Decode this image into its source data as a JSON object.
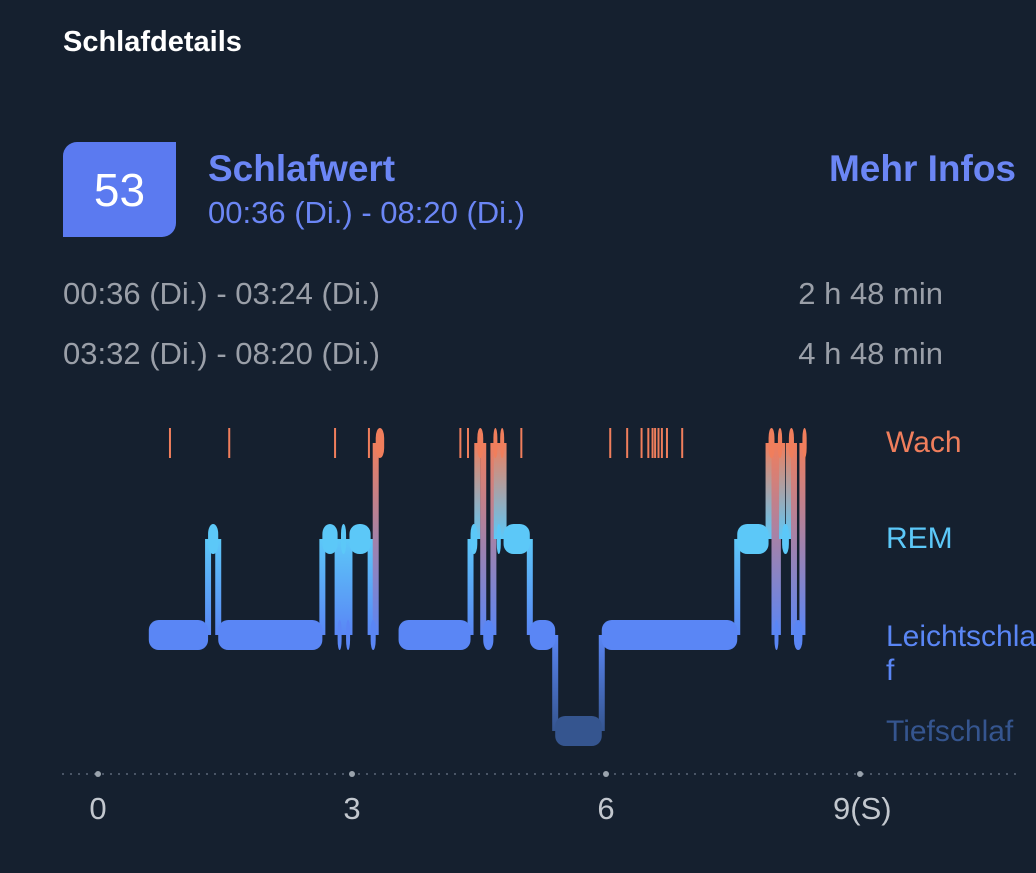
{
  "header": {
    "title": "Schlafdetails"
  },
  "score": {
    "value": "53",
    "title": "Schlafwert",
    "range": "00:36 (Di.) - 08:20 (Di.)",
    "more_info": "Mehr Infos"
  },
  "segments": [
    {
      "time": "00:36 (Di.) - 03:24 (Di.)",
      "duration": "2 h 48 min"
    },
    {
      "time": "03:32 (Di.) - 08:20 (Di.)",
      "duration": "4 h 48 min"
    }
  ],
  "chart_data": {
    "type": "hypnogram",
    "x_unit_label": "(S)",
    "x_ticks": [
      0,
      3,
      6,
      9
    ],
    "x_tick_labels": [
      "0",
      "3",
      "6",
      "9(S)"
    ],
    "xlim": [
      0,
      9.5
    ],
    "stages": [
      {
        "key": "wach",
        "label": "Wach",
        "color": "#f07e5c"
      },
      {
        "key": "rem",
        "label": "REM",
        "color": "#5cc8f8"
      },
      {
        "key": "leicht",
        "label": "Leichtschlaf",
        "color": "#5a86f5"
      },
      {
        "key": "tief",
        "label": "Tiefschlaf",
        "color": "#35558f"
      }
    ],
    "sessions": [
      {
        "segments": [
          {
            "stage": "leicht",
            "start": 0.6,
            "end": 1.3
          },
          {
            "stage": "rem",
            "start": 1.3,
            "end": 1.42
          },
          {
            "stage": "leicht",
            "start": 1.42,
            "end": 2.65
          },
          {
            "stage": "rem",
            "start": 2.65,
            "end": 2.83
          },
          {
            "stage": "leicht",
            "start": 2.83,
            "end": 2.87
          },
          {
            "stage": "rem",
            "start": 2.87,
            "end": 2.93
          },
          {
            "stage": "leicht",
            "start": 2.93,
            "end": 2.97
          },
          {
            "stage": "rem",
            "start": 2.97,
            "end": 3.22
          },
          {
            "stage": "leicht",
            "start": 3.22,
            "end": 3.28
          },
          {
            "stage": "wach",
            "start": 3.28,
            "end": 3.38
          }
        ]
      },
      {
        "segments": [
          {
            "stage": "leicht",
            "start": 3.55,
            "end": 4.4
          },
          {
            "stage": "rem",
            "start": 4.4,
            "end": 4.48
          },
          {
            "stage": "wach",
            "start": 4.48,
            "end": 4.55
          },
          {
            "stage": "leicht",
            "start": 4.55,
            "end": 4.67
          },
          {
            "stage": "wach",
            "start": 4.67,
            "end": 4.71
          },
          {
            "stage": "rem",
            "start": 4.71,
            "end": 4.75
          },
          {
            "stage": "wach",
            "start": 4.75,
            "end": 4.79
          },
          {
            "stage": "rem",
            "start": 4.79,
            "end": 5.1
          },
          {
            "stage": "leicht",
            "start": 5.1,
            "end": 5.4
          },
          {
            "stage": "tief",
            "start": 5.4,
            "end": 5.95
          },
          {
            "stage": "leicht",
            "start": 5.95,
            "end": 7.55
          },
          {
            "stage": "rem",
            "start": 7.55,
            "end": 7.92
          },
          {
            "stage": "wach",
            "start": 7.92,
            "end": 7.99
          },
          {
            "stage": "leicht",
            "start": 7.99,
            "end": 8.03
          },
          {
            "stage": "wach",
            "start": 8.03,
            "end": 8.08
          },
          {
            "stage": "rem",
            "start": 8.08,
            "end": 8.16
          },
          {
            "stage": "wach",
            "start": 8.16,
            "end": 8.22
          },
          {
            "stage": "leicht",
            "start": 8.22,
            "end": 8.32
          },
          {
            "stage": "wach",
            "start": 8.32,
            "end": 8.37
          }
        ]
      }
    ],
    "wake_marks": [
      0.85,
      1.55,
      2.8,
      3.2,
      4.28,
      4.37,
      5.0,
      6.05,
      6.25,
      6.42,
      6.5,
      6.55,
      6.58,
      6.62,
      6.66,
      6.72,
      6.9
    ]
  }
}
